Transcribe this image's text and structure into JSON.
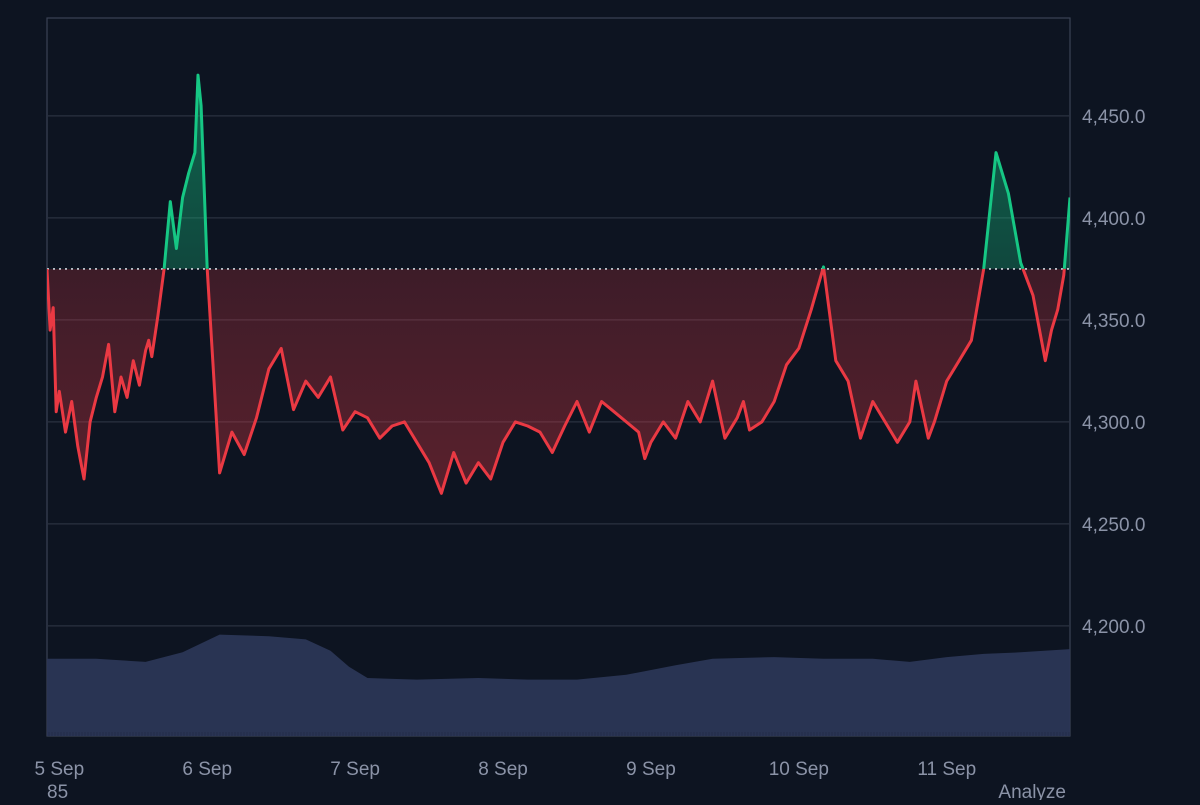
{
  "colors": {
    "background": "#0d1421",
    "grid": "#2a3140",
    "axis": "#3a4254",
    "up": "#16c784",
    "down": "#ea3943",
    "baseline": "#cfd3dc",
    "volume": "#2b3656",
    "tick_text": "#8b93a7"
  },
  "footer": {
    "left_value": "85",
    "right_label": "Analyze"
  },
  "chart_data": {
    "type": "line",
    "baseline": 4375,
    "ylim": [
      4146,
      4498
    ],
    "yticks": [
      {
        "value": 4450,
        "label": "4,450.0"
      },
      {
        "value": 4400,
        "label": "4,400.0"
      },
      {
        "value": 4350,
        "label": "4,350.0"
      },
      {
        "value": 4300,
        "label": "4,300.0"
      },
      {
        "value": 4250,
        "label": "4,250.0"
      },
      {
        "value": 4200,
        "label": "4,200.0"
      }
    ],
    "xlim": [
      "2025-09-04T22:00",
      "2025-09-11T20:00"
    ],
    "xticks": [
      {
        "value": "2025-09-05T00:00",
        "label": "5 Sep"
      },
      {
        "value": "2025-09-06T00:00",
        "label": "6 Sep"
      },
      {
        "value": "2025-09-07T00:00",
        "label": "7 Sep"
      },
      {
        "value": "2025-09-08T00:00",
        "label": "8 Sep"
      },
      {
        "value": "2025-09-09T00:00",
        "label": "9 Sep"
      },
      {
        "value": "2025-09-10T00:00",
        "label": "10 Sep"
      },
      {
        "value": "2025-09-11T00:00",
        "label": "11 Sep"
      }
    ],
    "series": [
      {
        "x": [
          "2025-09-04T22:00",
          "2025-09-04T22:30",
          "2025-09-04T23:00",
          "2025-09-04T23:30",
          "2025-09-05T00:00",
          "2025-09-05T01:00",
          "2025-09-05T02:00",
          "2025-09-05T03:00",
          "2025-09-05T04:00",
          "2025-09-05T05:00",
          "2025-09-05T06:00",
          "2025-09-05T07:00",
          "2025-09-05T08:00",
          "2025-09-05T09:00",
          "2025-09-05T10:00",
          "2025-09-05T11:00",
          "2025-09-05T12:00",
          "2025-09-05T13:00",
          "2025-09-05T14:00",
          "2025-09-05T14:30",
          "2025-09-05T15:00",
          "2025-09-05T16:00",
          "2025-09-05T17:00",
          "2025-09-05T18:00",
          "2025-09-05T19:00",
          "2025-09-05T20:00",
          "2025-09-05T21:00",
          "2025-09-05T22:00",
          "2025-09-05T22:30",
          "2025-09-05T23:00",
          "2025-09-06T00:00",
          "2025-09-06T02:00",
          "2025-09-06T04:00",
          "2025-09-06T06:00",
          "2025-09-06T08:00",
          "2025-09-06T10:00",
          "2025-09-06T12:00",
          "2025-09-06T14:00",
          "2025-09-06T16:00",
          "2025-09-06T18:00",
          "2025-09-06T20:00",
          "2025-09-06T22:00",
          "2025-09-07T00:00",
          "2025-09-07T02:00",
          "2025-09-07T04:00",
          "2025-09-07T06:00",
          "2025-09-07T08:00",
          "2025-09-07T10:00",
          "2025-09-07T12:00",
          "2025-09-07T14:00",
          "2025-09-07T16:00",
          "2025-09-07T18:00",
          "2025-09-07T20:00",
          "2025-09-07T22:00",
          "2025-09-08T00:00",
          "2025-09-08T02:00",
          "2025-09-08T04:00",
          "2025-09-08T06:00",
          "2025-09-08T08:00",
          "2025-09-08T10:00",
          "2025-09-08T12:00",
          "2025-09-08T14:00",
          "2025-09-08T16:00",
          "2025-09-08T18:00",
          "2025-09-08T20:00",
          "2025-09-08T22:00",
          "2025-09-08T23:00",
          "2025-09-09T00:00",
          "2025-09-09T02:00",
          "2025-09-09T04:00",
          "2025-09-09T06:00",
          "2025-09-09T08:00",
          "2025-09-09T10:00",
          "2025-09-09T12:00",
          "2025-09-09T14:00",
          "2025-09-09T15:00",
          "2025-09-09T16:00",
          "2025-09-09T18:00",
          "2025-09-09T20:00",
          "2025-09-09T22:00",
          "2025-09-10T00:00",
          "2025-09-10T02:00",
          "2025-09-10T04:00",
          "2025-09-10T06:00",
          "2025-09-10T08:00",
          "2025-09-10T10:00",
          "2025-09-10T12:00",
          "2025-09-10T14:00",
          "2025-09-10T16:00",
          "2025-09-10T18:00",
          "2025-09-10T19:00",
          "2025-09-10T20:00",
          "2025-09-10T21:00",
          "2025-09-10T22:00",
          "2025-09-11T00:00",
          "2025-09-11T02:00",
          "2025-09-11T04:00",
          "2025-09-11T06:00",
          "2025-09-11T08:00",
          "2025-09-11T10:00",
          "2025-09-11T12:00",
          "2025-09-11T14:00",
          "2025-09-11T16:00",
          "2025-09-11T17:00",
          "2025-09-11T18:00",
          "2025-09-11T19:00",
          "2025-09-11T20:00"
        ],
        "y": [
          4375,
          4345,
          4356,
          4305,
          4315,
          4295,
          4310,
          4288,
          4272,
          4300,
          4312,
          4322,
          4338,
          4305,
          4322,
          4312,
          4330,
          4318,
          4335,
          4340,
          4332,
          4352,
          4375,
          4408,
          4385,
          4410,
          4422,
          4432,
          4470,
          4455,
          4375,
          4275,
          4295,
          4284,
          4302,
          4326,
          4336,
          4306,
          4320,
          4312,
          4322,
          4296,
          4305,
          4302,
          4292,
          4298,
          4300,
          4290,
          4280,
          4265,
          4285,
          4270,
          4280,
          4272,
          4290,
          4300,
          4298,
          4295,
          4285,
          4298,
          4310,
          4295,
          4310,
          4305,
          4300,
          4295,
          4282,
          4290,
          4300,
          4292,
          4310,
          4300,
          4320,
          4292,
          4302,
          4310,
          4296,
          4300,
          4310,
          4328,
          4336,
          4355,
          4376,
          4330,
          4320,
          4292,
          4310,
          4300,
          4290,
          4300,
          4320,
          4306,
          4292,
          4300,
          4320,
          4330,
          4340,
          4375,
          4432,
          4412,
          4378,
          4362,
          4330,
          4345,
          4355,
          4372,
          4410
        ]
      }
    ],
    "volume": [
      {
        "x": "2025-09-04T22:00",
        "value": 0.48
      },
      {
        "x": "2025-09-05T06:00",
        "value": 0.48
      },
      {
        "x": "2025-09-05T14:00",
        "value": 0.46
      },
      {
        "x": "2025-09-05T20:00",
        "value": 0.52
      },
      {
        "x": "2025-09-06T02:00",
        "value": 0.63
      },
      {
        "x": "2025-09-06T10:00",
        "value": 0.62
      },
      {
        "x": "2025-09-06T16:00",
        "value": 0.6
      },
      {
        "x": "2025-09-06T20:00",
        "value": 0.53
      },
      {
        "x": "2025-09-06T23:00",
        "value": 0.43
      },
      {
        "x": "2025-09-07T02:00",
        "value": 0.36
      },
      {
        "x": "2025-09-07T10:00",
        "value": 0.35
      },
      {
        "x": "2025-09-07T20:00",
        "value": 0.36
      },
      {
        "x": "2025-09-08T04:00",
        "value": 0.35
      },
      {
        "x": "2025-09-08T12:00",
        "value": 0.35
      },
      {
        "x": "2025-09-08T20:00",
        "value": 0.38
      },
      {
        "x": "2025-09-09T04:00",
        "value": 0.44
      },
      {
        "x": "2025-09-09T10:00",
        "value": 0.48
      },
      {
        "x": "2025-09-09T20:00",
        "value": 0.49
      },
      {
        "x": "2025-09-10T04:00",
        "value": 0.48
      },
      {
        "x": "2025-09-10T12:00",
        "value": 0.48
      },
      {
        "x": "2025-09-10T18:00",
        "value": 0.46
      },
      {
        "x": "2025-09-11T00:00",
        "value": 0.49
      },
      {
        "x": "2025-09-11T06:00",
        "value": 0.51
      },
      {
        "x": "2025-09-11T12:00",
        "value": 0.52
      },
      {
        "x": "2025-09-11T20:00",
        "value": 0.54
      }
    ],
    "grid": true,
    "legend": "none"
  }
}
